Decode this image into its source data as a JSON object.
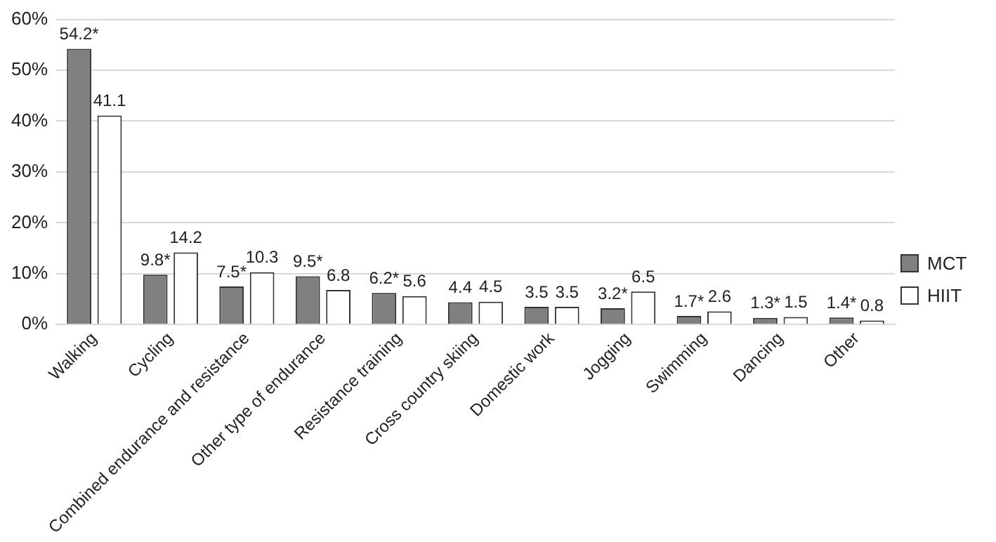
{
  "chart_data": {
    "type": "bar",
    "categories": [
      "Walking",
      "Cycling",
      "Combined endurance and resistance",
      "Other type of endurance",
      "Resistance training",
      "Cross country skiing",
      "Domestic work",
      "Jogging",
      "Swimming",
      "Dancing",
      "Other"
    ],
    "series": [
      {
        "name": "MCT",
        "color": "#808080",
        "values": [
          54.2,
          9.8,
          7.5,
          9.5,
          6.2,
          4.4,
          3.5,
          3.2,
          1.7,
          1.3,
          1.4
        ],
        "value_labels": [
          "54.2*",
          "9.8*",
          "7.5*",
          "9.5*",
          "6.2*",
          "4.4",
          "3.5",
          "3.2*",
          "1.7*",
          "1.3*",
          "1.4*"
        ]
      },
      {
        "name": "HIIT",
        "color": "#ffffff",
        "values": [
          41.1,
          14.2,
          10.3,
          6.8,
          5.6,
          4.5,
          3.5,
          6.5,
          2.6,
          1.5,
          0.8
        ],
        "value_labels": [
          "41.1",
          "14.2",
          "10.3",
          "6.8",
          "5.6",
          "4.5",
          "3.5",
          "6.5",
          "2.6",
          "1.5",
          "0.8"
        ]
      }
    ],
    "ylim": [
      0,
      60
    ],
    "yticks": [
      {
        "value": 0,
        "label": "0%"
      },
      {
        "value": 10,
        "label": "10%"
      },
      {
        "value": 20,
        "label": "20%"
      },
      {
        "value": 30,
        "label": "30%"
      },
      {
        "value": 40,
        "label": "40%"
      },
      {
        "value": 50,
        "label": "50%"
      },
      {
        "value": 60,
        "label": "60%"
      }
    ],
    "grid": "y",
    "legend": "right"
  }
}
